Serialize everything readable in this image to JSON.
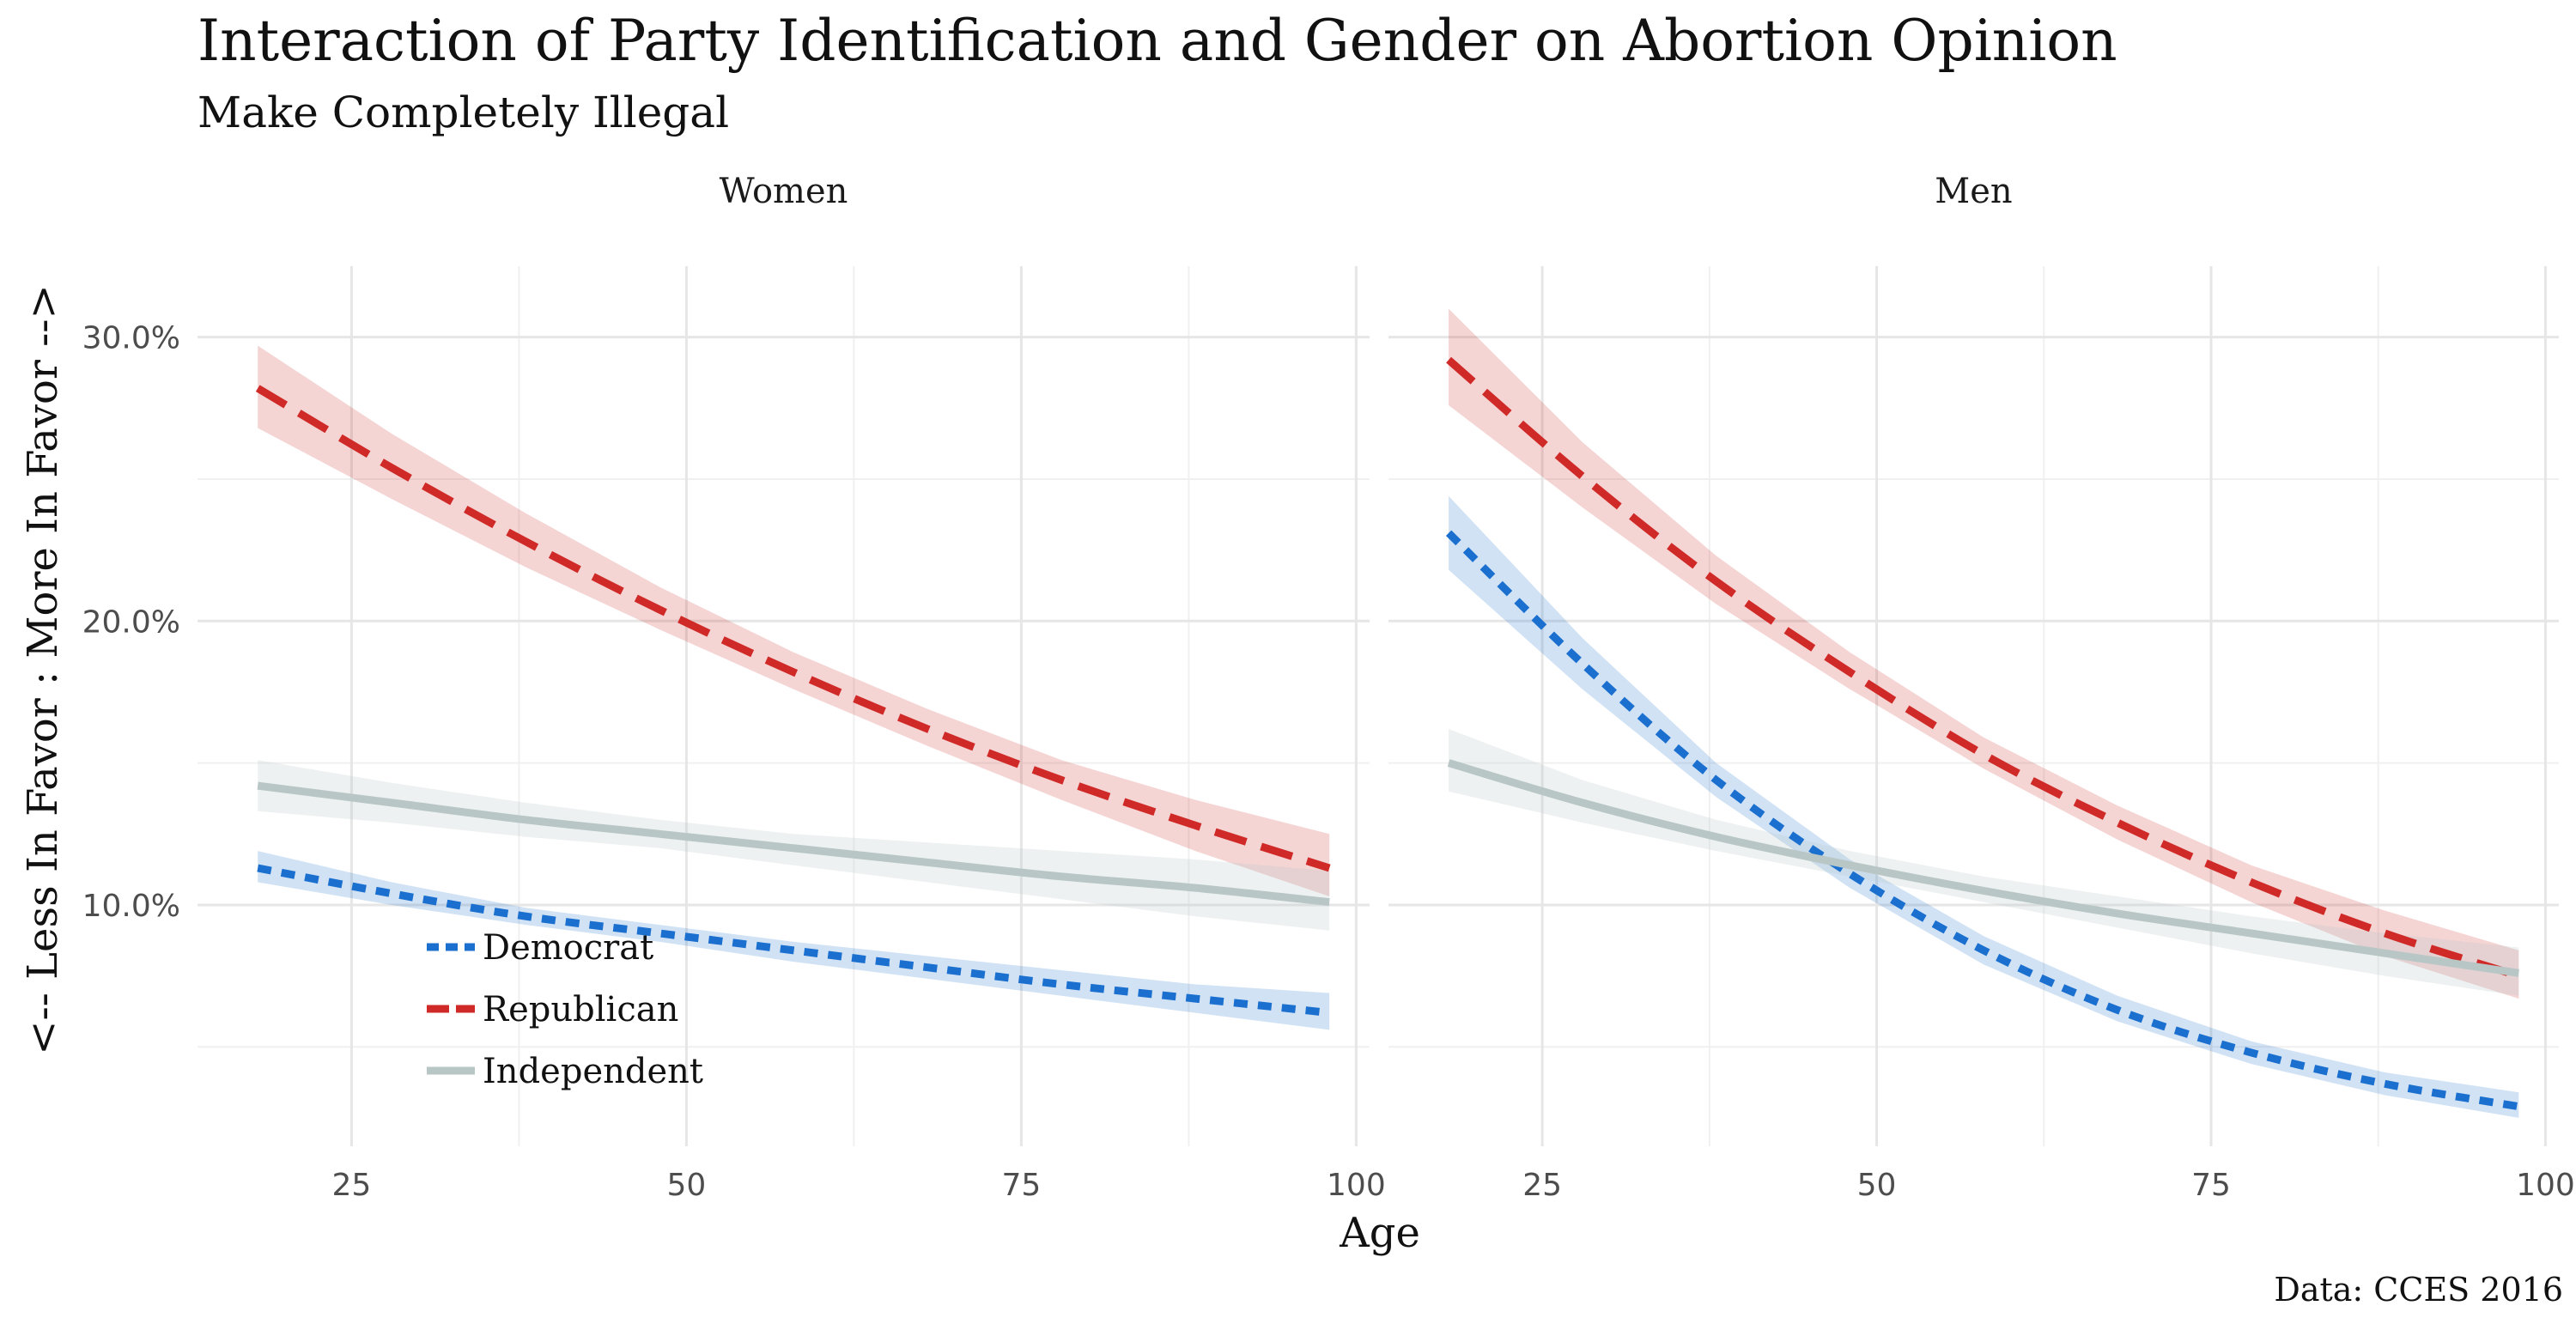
{
  "chart_data": {
    "type": "line",
    "title": "Interaction of Party Identification and Gender on Abortion Opinion",
    "subtitle": "Make Completely Illegal",
    "xlabel": "Age",
    "ylabel": "<-- Less In Favor : More In Favor -->",
    "caption": "Data: CCES 2016",
    "xlim": [
      13.5,
      101
    ],
    "ylim": [
      1.5,
      32.5
    ],
    "x_ticks": [
      25,
      50,
      75,
      100
    ],
    "y_ticks": [
      10,
      20,
      30
    ],
    "y_tick_labels": [
      "10.0%",
      "20.0%",
      "30.0%"
    ],
    "grid": true,
    "legend_position": "inside-bottom-left",
    "legend": [
      {
        "name": "Democrat",
        "color": "#1a6fcf",
        "dash": "short"
      },
      {
        "name": "Republican",
        "color": "#cf2a27",
        "dash": "long"
      },
      {
        "name": "Independent",
        "color": "#b9c6c6",
        "dash": "solid"
      }
    ],
    "panels": [
      {
        "label": "Women",
        "series": [
          {
            "name": "Democrat",
            "x": [
              18,
              28,
              38,
              48,
              58,
              68,
              78,
              88,
              98
            ],
            "y": [
              11.3,
              10.4,
              9.6,
              9.0,
              8.4,
              7.8,
              7.2,
              6.7,
              6.2
            ],
            "lower": [
              10.8,
              10.0,
              9.3,
              8.7,
              8.0,
              7.4,
              6.8,
              6.2,
              5.6
            ],
            "upper": [
              11.9,
              10.8,
              9.9,
              9.3,
              8.7,
              8.2,
              7.7,
              7.2,
              6.9
            ]
          },
          {
            "name": "Republican",
            "x": [
              18,
              28,
              38,
              48,
              58,
              68,
              78,
              88,
              98
            ],
            "y": [
              28.2,
              25.4,
              22.8,
              20.4,
              18.2,
              16.2,
              14.4,
              12.8,
              11.3
            ],
            "lower": [
              26.8,
              24.3,
              21.9,
              19.7,
              17.6,
              15.6,
              13.7,
              11.9,
              10.3
            ],
            "upper": [
              29.7,
              26.6,
              23.8,
              21.2,
              18.9,
              16.9,
              15.1,
              13.7,
              12.5
            ]
          },
          {
            "name": "Independent",
            "x": [
              18,
              28,
              38,
              48,
              58,
              68,
              78,
              88,
              98
            ],
            "y": [
              14.2,
              13.6,
              13.0,
              12.5,
              12.0,
              11.5,
              11.0,
              10.6,
              10.1
            ],
            "lower": [
              13.3,
              12.9,
              12.4,
              12.0,
              11.4,
              10.8,
              10.2,
              9.6,
              9.1
            ],
            "upper": [
              15.1,
              14.3,
              13.6,
              13.0,
              12.5,
              12.2,
              11.9,
              11.6,
              11.2
            ]
          }
        ]
      },
      {
        "label": "Men",
        "series": [
          {
            "name": "Democrat",
            "x": [
              18,
              28,
              38,
              48,
              58,
              68,
              78,
              88,
              98
            ],
            "y": [
              23.1,
              18.5,
              14.4,
              11.1,
              8.4,
              6.3,
              4.8,
              3.7,
              2.9
            ],
            "lower": [
              21.8,
              17.6,
              13.8,
              10.6,
              7.9,
              5.9,
              4.4,
              3.3,
              2.5
            ],
            "upper": [
              24.4,
              19.4,
              15.0,
              11.6,
              8.9,
              6.8,
              5.2,
              4.1,
              3.4
            ]
          },
          {
            "name": "Republican",
            "x": [
              18,
              28,
              38,
              48,
              58,
              68,
              78,
              88,
              98
            ],
            "y": [
              29.2,
              25.1,
              21.4,
              18.2,
              15.3,
              12.9,
              10.8,
              9.0,
              7.5
            ],
            "lower": [
              27.6,
              24.0,
              20.6,
              17.6,
              14.8,
              12.3,
              10.1,
              8.2,
              6.7
            ],
            "upper": [
              31.0,
              26.3,
              22.3,
              18.9,
              15.9,
              13.5,
              11.4,
              9.8,
              8.4
            ]
          },
          {
            "name": "Independent",
            "x": [
              18,
              28,
              38,
              48,
              58,
              68,
              78,
              88,
              98
            ],
            "y": [
              15.0,
              13.6,
              12.4,
              11.4,
              10.5,
              9.7,
              9.0,
              8.3,
              7.6
            ],
            "lower": [
              14.0,
              12.9,
              11.9,
              11.0,
              10.1,
              9.2,
              8.3,
              7.5,
              6.8
            ],
            "upper": [
              16.2,
              14.4,
              13.0,
              11.9,
              11.0,
              10.3,
              9.6,
              9.0,
              8.5
            ]
          }
        ]
      }
    ]
  }
}
